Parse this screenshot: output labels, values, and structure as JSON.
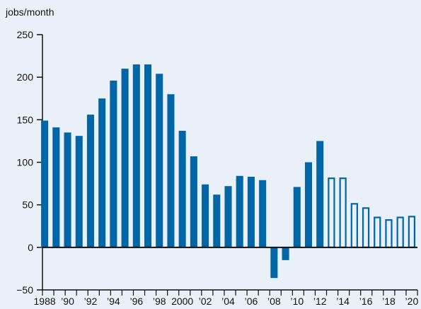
{
  "chart_data": {
    "type": "bar",
    "title": "",
    "ylabel": "jobs/month",
    "xlabel": "",
    "ylim": [
      -50,
      250
    ],
    "yticks": [
      -50,
      0,
      50,
      100,
      150,
      200,
      250
    ],
    "ytick_labels": [
      "−50",
      "0",
      "50",
      "100",
      "150",
      "200",
      "250"
    ],
    "categories": [
      "1988",
      "1989",
      "1990",
      "1991",
      "1992",
      "1993",
      "1994",
      "1995",
      "1996",
      "1997",
      "1998",
      "1999",
      "2000",
      "2001",
      "2002",
      "2003",
      "2004",
      "2005",
      "2006",
      "2007",
      "2008",
      "2009",
      "2010",
      "2011",
      "2012",
      "2013",
      "2014",
      "2015",
      "2016",
      "2017",
      "2018",
      "2019",
      "2020"
    ],
    "xtick_labels": [
      {
        "year": "1988",
        "label": "1988"
      },
      {
        "year": "1990",
        "label": "’90"
      },
      {
        "year": "1992",
        "label": "’92"
      },
      {
        "year": "1994",
        "label": "’94"
      },
      {
        "year": "1996",
        "label": "’96"
      },
      {
        "year": "1998",
        "label": "’98"
      },
      {
        "year": "2000",
        "label": "2000"
      },
      {
        "year": "2002",
        "label": "’02"
      },
      {
        "year": "2004",
        "label": "’04"
      },
      {
        "year": "2006",
        "label": "’06"
      },
      {
        "year": "2008",
        "label": "’08"
      },
      {
        "year": "2010",
        "label": "’10"
      },
      {
        "year": "2012",
        "label": "’12"
      },
      {
        "year": "2014",
        "label": "’14"
      },
      {
        "year": "2016",
        "label": "’16"
      },
      {
        "year": "2018",
        "label": "’18"
      },
      {
        "year": "2020",
        "label": "’20"
      }
    ],
    "series": [
      {
        "values": [
          149,
          141,
          135,
          131,
          156,
          175,
          196,
          210,
          215,
          215,
          204,
          180,
          137,
          107,
          74,
          62,
          72,
          84,
          83,
          79,
          -36,
          -15,
          71,
          100,
          125,
          82,
          82,
          52,
          47,
          36,
          33,
          36,
          37
        ],
        "style": [
          "solid",
          "solid",
          "solid",
          "solid",
          "solid",
          "solid",
          "solid",
          "solid",
          "solid",
          "solid",
          "solid",
          "solid",
          "solid",
          "solid",
          "solid",
          "solid",
          "solid",
          "solid",
          "solid",
          "solid",
          "solid",
          "solid",
          "solid",
          "solid",
          "solid",
          "outline",
          "outline",
          "outline",
          "outline",
          "outline",
          "outline",
          "outline",
          "outline"
        ]
      }
    ],
    "colors": {
      "bar": "#0066a6",
      "background": "#eaf0f7",
      "axis": "#111111"
    },
    "grid": false,
    "legend": "none"
  }
}
